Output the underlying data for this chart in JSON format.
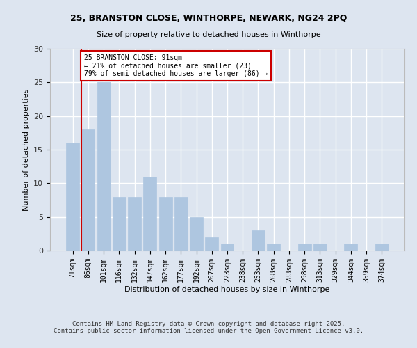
{
  "title_line1": "25, BRANSTON CLOSE, WINTHORPE, NEWARK, NG24 2PQ",
  "title_line2": "Size of property relative to detached houses in Winthorpe",
  "xlabel": "Distribution of detached houses by size in Winthorpe",
  "ylabel": "Number of detached properties",
  "categories": [
    "71sqm",
    "86sqm",
    "101sqm",
    "116sqm",
    "132sqm",
    "147sqm",
    "162sqm",
    "177sqm",
    "192sqm",
    "207sqm",
    "223sqm",
    "238sqm",
    "253sqm",
    "268sqm",
    "283sqm",
    "298sqm",
    "313sqm",
    "329sqm",
    "344sqm",
    "359sqm",
    "374sqm"
  ],
  "values": [
    16,
    18,
    25,
    8,
    8,
    11,
    8,
    8,
    5,
    2,
    1,
    0,
    3,
    1,
    0,
    1,
    1,
    0,
    1,
    0,
    1
  ],
  "bar_color": "#aec6e0",
  "bar_edgecolor": "#aec6e0",
  "background_color": "#dde5f0",
  "grid_color": "#ffffff",
  "red_line_x": 1.0,
  "annotation_text": "25 BRANSTON CLOSE: 91sqm\n← 21% of detached houses are smaller (23)\n79% of semi-detached houses are larger (86) →",
  "annotation_box_color": "#ffffff",
  "annotation_box_edgecolor": "#cc0000",
  "ylim": [
    0,
    30
  ],
  "yticks": [
    0,
    5,
    10,
    15,
    20,
    25,
    30
  ],
  "footer_line1": "Contains HM Land Registry data © Crown copyright and database right 2025.",
  "footer_line2": "Contains public sector information licensed under the Open Government Licence v3.0."
}
